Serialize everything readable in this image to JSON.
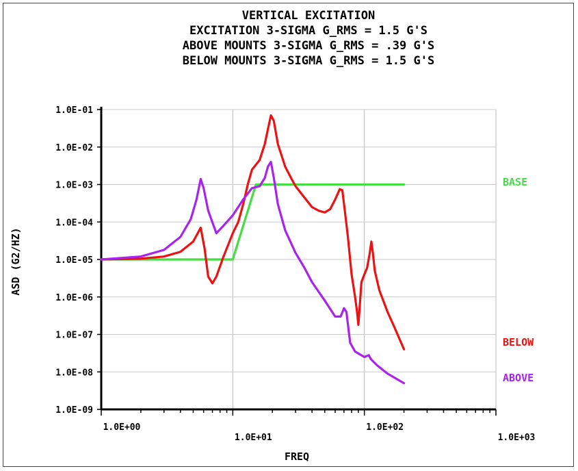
{
  "chart_data": {
    "type": "line",
    "title_lines": [
      "VERTICAL EXCITATION",
      "EXCITATION 3-SIGMA G_RMS = 1.5 G'S",
      "ABOVE MOUNTS 3-SIGMA G_RMS = .39 G'S",
      "BELOW MOUNTS 3-SIGMA G_RMS = 1.5 G'S"
    ],
    "xlabel": "FREQ",
    "ylabel": "ASD (G2/HZ)",
    "xscale": "log",
    "yscale": "log",
    "xlim": [
      1,
      1000
    ],
    "ylim": [
      1e-09,
      0.1
    ],
    "x_tick_values": [
      1,
      10,
      100,
      1000
    ],
    "x_tick_labels": [
      "1.0E+00",
      "1.0E+01",
      "1.0E+02",
      "1.0E+03"
    ],
    "y_tick_values": [
      0.1,
      0.01,
      0.001,
      0.0001,
      1e-05,
      1e-06,
      1e-07,
      1e-08,
      1e-09
    ],
    "y_tick_labels": [
      "1.0E-01",
      "1.0E-02",
      "1.0E-03",
      "1.0E-04",
      "1.0E-05",
      "1.0E-06",
      "1.0E-07",
      "1.0E-08",
      "1.0E-09"
    ],
    "grid": true,
    "legend_position": "right",
    "series": [
      {
        "name": "BASE",
        "color": "#44dd44",
        "points": [
          [
            1,
            1e-05
          ],
          [
            10,
            1e-05
          ],
          [
            15,
            0.001
          ],
          [
            200,
            0.001
          ]
        ]
      },
      {
        "name": "BELOW",
        "color": "#ee1111",
        "points": [
          [
            1,
            1e-05
          ],
          [
            2,
            1.05e-05
          ],
          [
            3,
            1.2e-05
          ],
          [
            4,
            1.6e-05
          ],
          [
            5,
            3e-05
          ],
          [
            5.7,
            7e-05
          ],
          [
            6.1,
            2e-05
          ],
          [
            6.5,
            3.5e-06
          ],
          [
            7,
            2.3e-06
          ],
          [
            7.5,
            3.5e-06
          ],
          [
            8.5,
            1.2e-05
          ],
          [
            10,
            5e-05
          ],
          [
            11,
            0.0001
          ],
          [
            12,
            0.0003
          ],
          [
            13,
            0.001
          ],
          [
            14,
            0.0025
          ],
          [
            16,
            0.0045
          ],
          [
            17.5,
            0.012
          ],
          [
            18.5,
            0.03
          ],
          [
            19.5,
            0.07
          ],
          [
            20.5,
            0.05
          ],
          [
            22,
            0.012
          ],
          [
            25,
            0.003
          ],
          [
            28,
            0.0014
          ],
          [
            30,
            0.0009
          ],
          [
            35,
            0.00045
          ],
          [
            40,
            0.00025
          ],
          [
            45,
            0.0002
          ],
          [
            50,
            0.00018
          ],
          [
            55,
            0.00022
          ],
          [
            60,
            0.0004
          ],
          [
            65,
            0.00075
          ],
          [
            68,
            0.0007
          ],
          [
            71,
            0.0002
          ],
          [
            75,
            4e-05
          ],
          [
            80,
            4e-06
          ],
          [
            85,
            1e-06
          ],
          [
            88,
            4e-07
          ],
          [
            90,
            1.8e-07
          ],
          [
            92,
            5e-07
          ],
          [
            95,
            2.5e-06
          ],
          [
            100,
            4e-06
          ],
          [
            105,
            6e-06
          ],
          [
            110,
            1.5e-05
          ],
          [
            113,
            3e-05
          ],
          [
            116,
            1.5e-05
          ],
          [
            120,
            5e-06
          ],
          [
            130,
            1.5e-06
          ],
          [
            150,
            4e-07
          ],
          [
            170,
            1.5e-07
          ],
          [
            200,
            4e-08
          ]
        ]
      },
      {
        "name": "ABOVE",
        "color": "#aa22ee",
        "points": [
          [
            1,
            1e-05
          ],
          [
            2,
            1.2e-05
          ],
          [
            3,
            1.8e-05
          ],
          [
            4,
            4e-05
          ],
          [
            4.8,
            0.00012
          ],
          [
            5.3,
            0.0004
          ],
          [
            5.7,
            0.0014
          ],
          [
            6,
            0.0008
          ],
          [
            6.5,
            0.0002
          ],
          [
            7.5,
            5e-05
          ],
          [
            8.5,
            8e-05
          ],
          [
            10,
            0.00015
          ],
          [
            12,
            0.0004
          ],
          [
            14,
            0.0008
          ],
          [
            16,
            0.0009
          ],
          [
            17.5,
            0.0015
          ],
          [
            18.5,
            0.003
          ],
          [
            19.5,
            0.004
          ],
          [
            20.5,
            0.0015
          ],
          [
            22,
            0.0003
          ],
          [
            25,
            6e-05
          ],
          [
            30,
            1.5e-05
          ],
          [
            35,
            6e-06
          ],
          [
            40,
            2.5e-06
          ],
          [
            50,
            8e-07
          ],
          [
            60,
            3e-07
          ],
          [
            66,
            3e-07
          ],
          [
            70,
            5e-07
          ],
          [
            73,
            4e-07
          ],
          [
            78,
            6e-08
          ],
          [
            85,
            3.5e-08
          ],
          [
            100,
            2.5e-08
          ],
          [
            108,
            2.8e-08
          ],
          [
            112,
            2.2e-08
          ],
          [
            125,
            1.5e-08
          ],
          [
            150,
            9e-09
          ],
          [
            200,
            5e-09
          ]
        ]
      }
    ]
  }
}
